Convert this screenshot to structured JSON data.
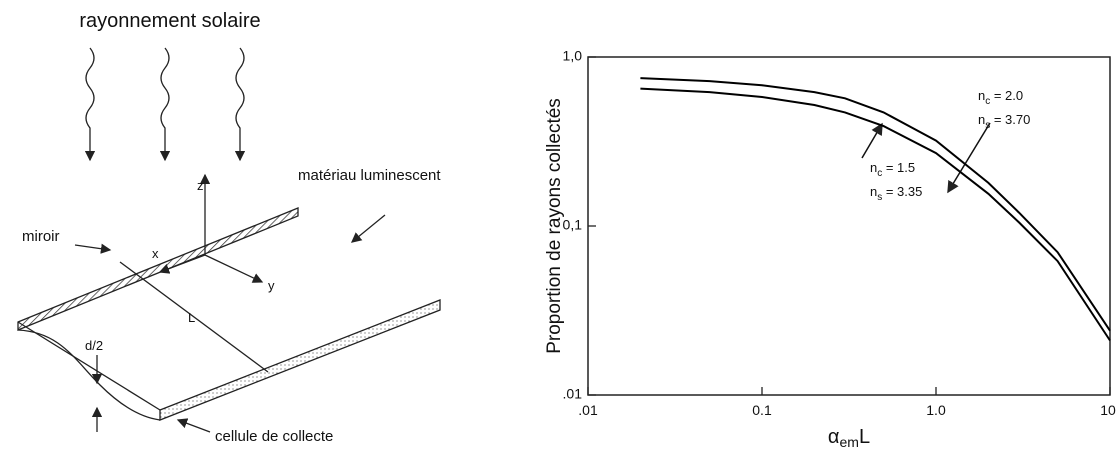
{
  "diagram": {
    "title": "rayonnement solaire",
    "labels": {
      "material": "matériau luminescent",
      "mirror": "miroir",
      "cell": "cellule de collecte",
      "z": "z",
      "x": "x",
      "y": "y",
      "length": "L",
      "half_thickness": "d/2"
    }
  },
  "chart_data": {
    "type": "line",
    "ylabel": "Proportion de rayons collectés",
    "xlabel": {
      "base": "α",
      "sub": "em",
      "tail": "L"
    },
    "log_x": true,
    "log_y": true,
    "xlim": [
      0.01,
      10
    ],
    "ylim": [
      0.01,
      1
    ],
    "xticks": [
      {
        "value": 0.01,
        "label": ".01"
      },
      0.1,
      {
        "value": 1,
        "label": "1.0"
      },
      {
        "value": 10,
        "label": "10."
      }
    ],
    "yticks": [
      {
        "value": 0.01,
        "label": ".01"
      },
      {
        "value": 0.1,
        "label": "0,1"
      },
      {
        "value": 1,
        "label": "1,0"
      }
    ],
    "x": [
      0.02,
      0.05,
      0.1,
      0.2,
      0.3,
      0.5,
      1,
      2,
      3,
      5,
      10
    ],
    "series": [
      {
        "color": "#000000",
        "values": [
          0.75,
          0.72,
          0.68,
          0.62,
          0.57,
          0.47,
          0.32,
          0.18,
          0.12,
          0.07,
          0.024
        ],
        "annotation": [
          {
            "symbol": "n",
            "sub": "c",
            "text": " = 2.0"
          },
          {
            "symbol": "n",
            "sub": "s",
            "text": " = 3.70"
          }
        ]
      },
      {
        "color": "#000000",
        "values": [
          0.65,
          0.62,
          0.58,
          0.52,
          0.47,
          0.39,
          0.27,
          0.155,
          0.105,
          0.062,
          0.021
        ],
        "annotation": [
          {
            "symbol": "n",
            "sub": "c",
            "text": " = 1.5"
          },
          {
            "symbol": "n",
            "sub": "s",
            "text": " = 3.35"
          }
        ]
      }
    ]
  }
}
